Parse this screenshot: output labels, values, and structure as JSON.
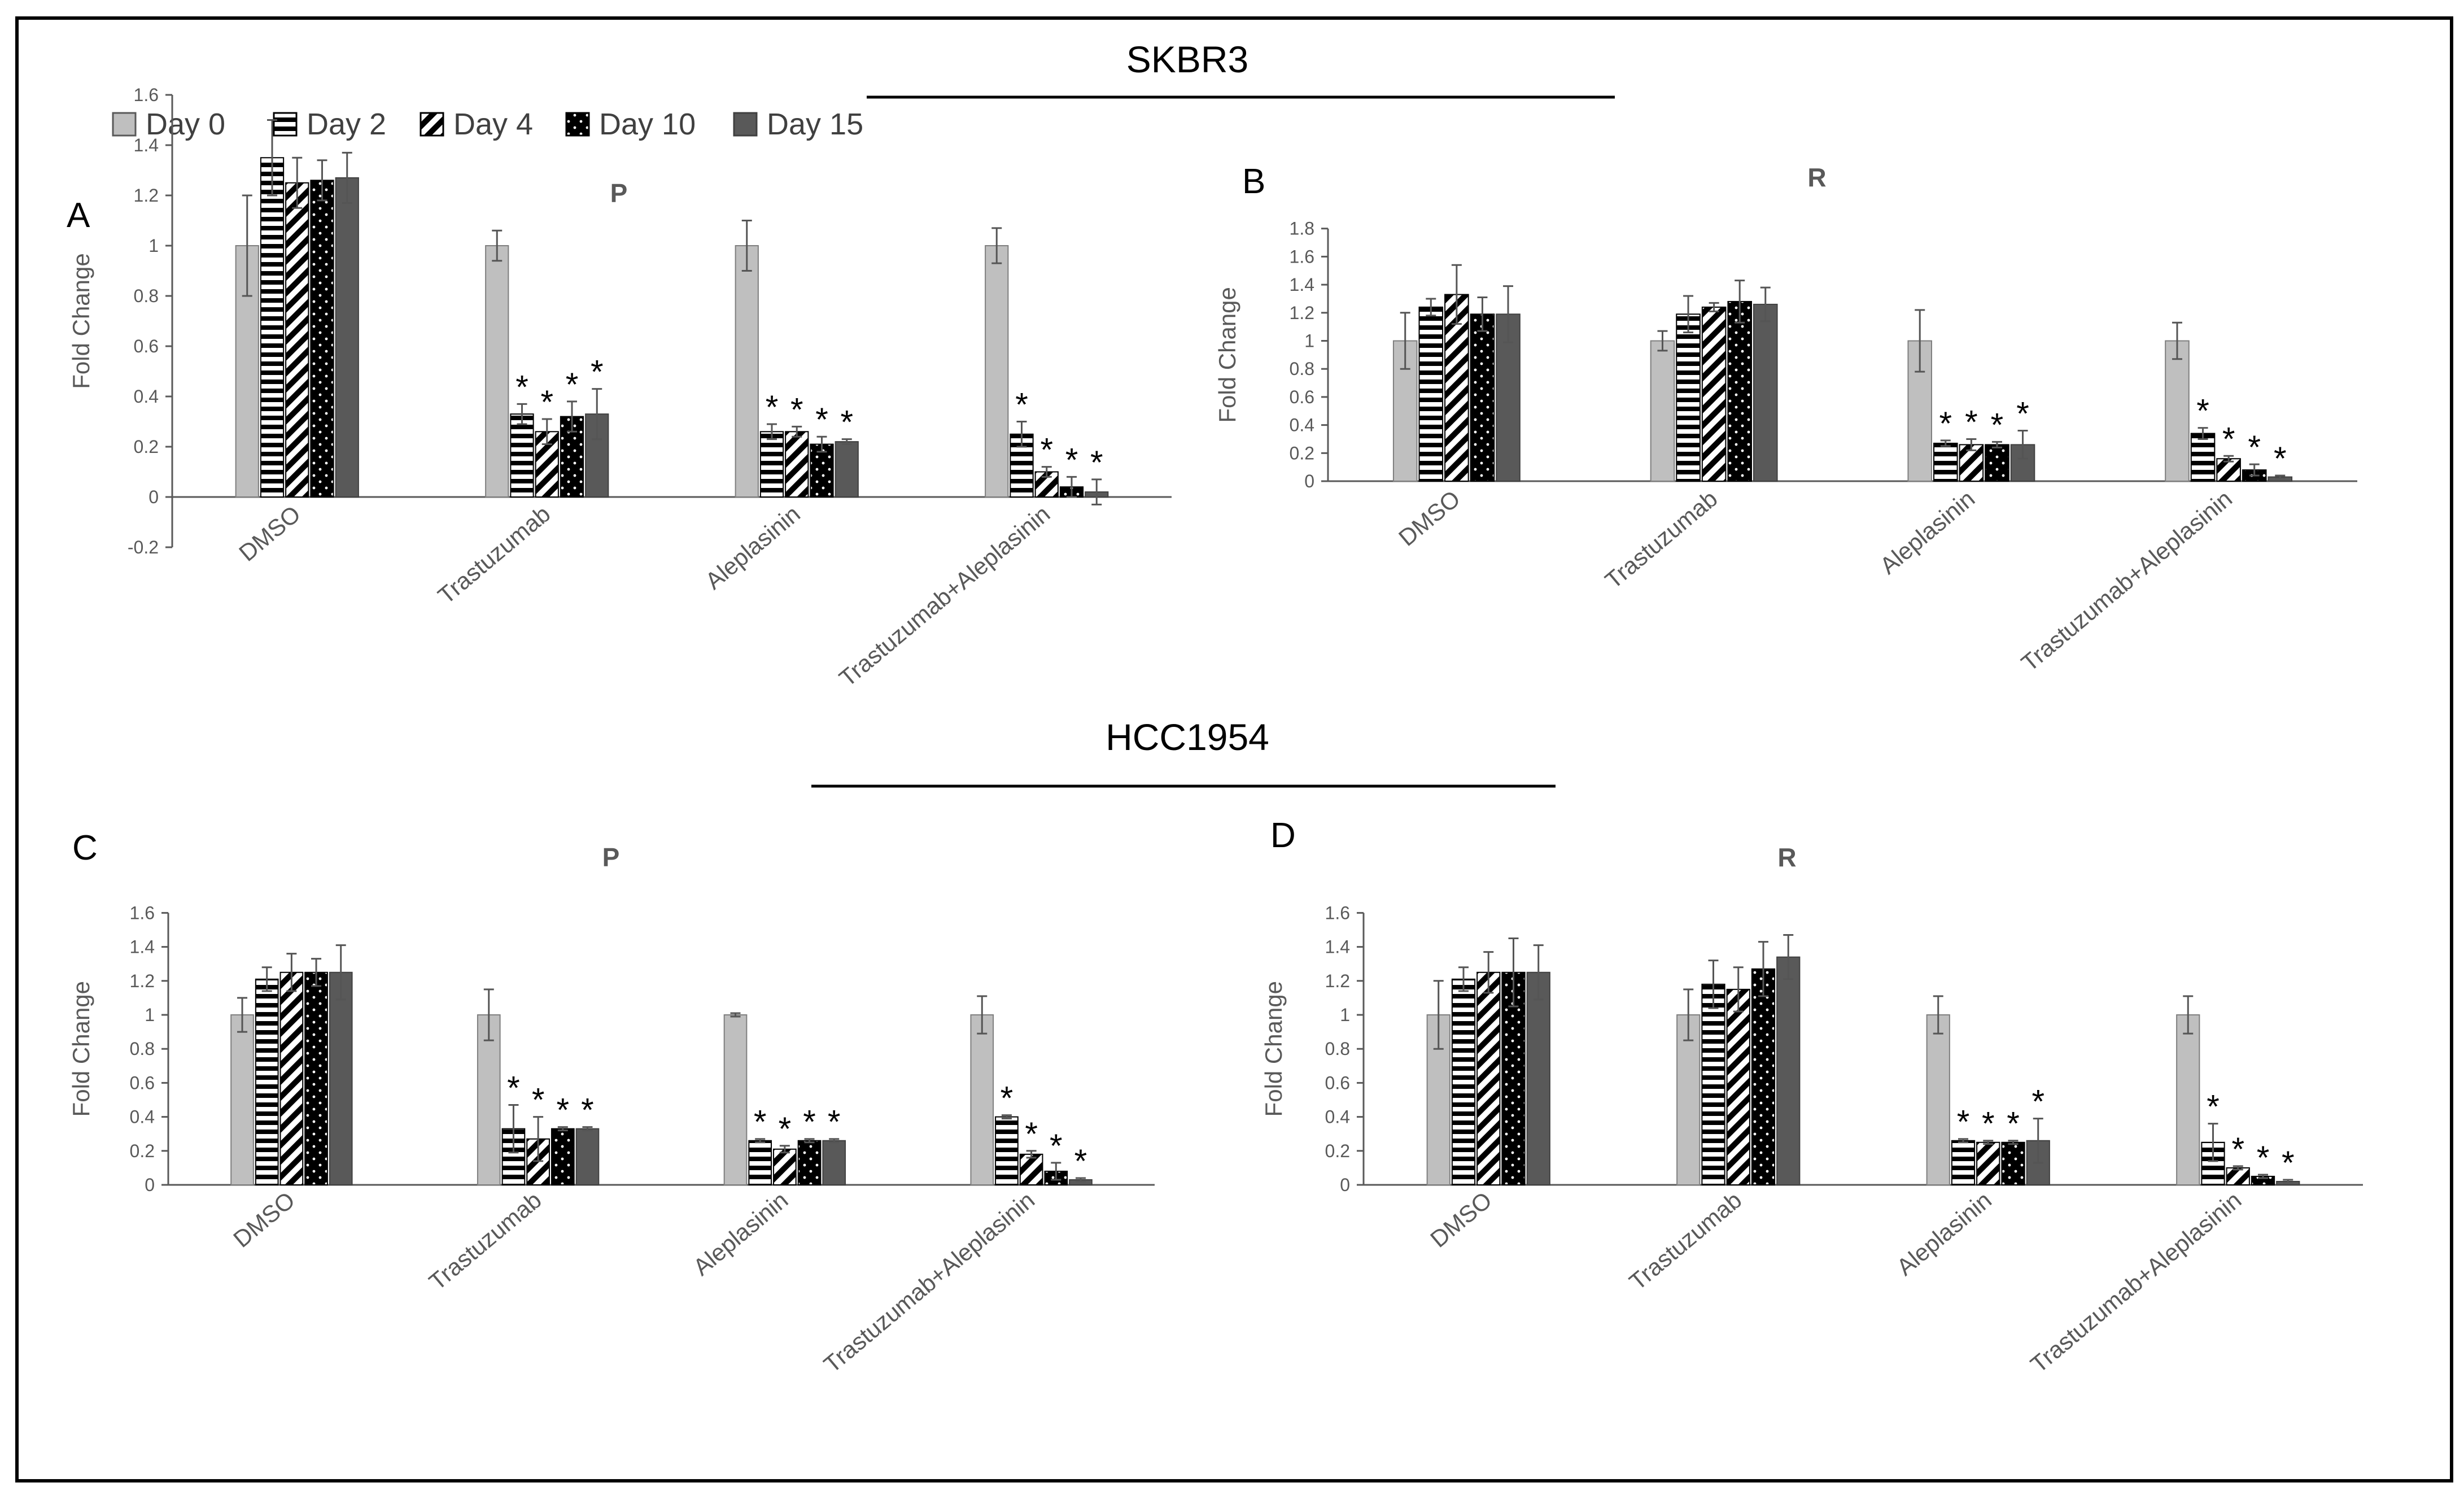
{
  "figure": {
    "section_titles": [
      "SKBR3",
      "HCC1954"
    ],
    "legend": [
      "Day 0",
      "Day 2",
      "Day 4",
      "Day 10",
      "Day 15"
    ],
    "significance_marker": "*"
  },
  "series_styles": {
    "Day 0": {
      "pattern": "solid",
      "color": "#bfbfbf"
    },
    "Day 2": {
      "pattern": "horizontal-stripes",
      "color": "#000000"
    },
    "Day 4": {
      "pattern": "diagonal-stripes",
      "color": "#000000"
    },
    "Day 10": {
      "pattern": "dots-on-black",
      "color": "#000000"
    },
    "Day 15": {
      "pattern": "solid",
      "color": "#595959"
    }
  },
  "chart_data": [
    {
      "type": "bar",
      "panel": "A",
      "title": "P",
      "ylabel": "Fold Change",
      "xlabel": "",
      "ylim": [
        -0.2,
        1.6
      ],
      "yticks": [
        "-0.2",
        "0",
        "0.2",
        "0.4",
        "0.6",
        "0.8",
        "1",
        "1.2",
        "1.4",
        "1.6"
      ],
      "categories": [
        "DMSO",
        "Trastuzumab",
        "Aleplasinin",
        "Trastuzumab+Aleplasinin"
      ],
      "series": [
        {
          "name": "Day 0",
          "values": [
            1.0,
            1.0,
            1.0,
            1.0
          ],
          "errors": [
            0.2,
            0.06,
            0.1,
            0.07
          ],
          "significant": [
            false,
            false,
            false,
            false
          ]
        },
        {
          "name": "Day 2",
          "values": [
            1.35,
            0.33,
            0.26,
            0.25
          ],
          "errors": [
            0.15,
            0.04,
            0.03,
            0.05
          ],
          "significant": [
            false,
            true,
            true,
            true
          ]
        },
        {
          "name": "Day 4",
          "values": [
            1.25,
            0.26,
            0.26,
            0.1
          ],
          "errors": [
            0.1,
            0.05,
            0.02,
            0.02
          ],
          "significant": [
            false,
            true,
            true,
            true
          ]
        },
        {
          "name": "Day 10",
          "values": [
            1.26,
            0.32,
            0.21,
            0.04
          ],
          "errors": [
            0.08,
            0.06,
            0.03,
            0.04
          ],
          "significant": [
            false,
            true,
            true,
            true
          ]
        },
        {
          "name": "Day 15",
          "values": [
            1.27,
            0.33,
            0.22,
            0.02
          ],
          "errors": [
            0.1,
            0.1,
            0.01,
            0.05
          ],
          "significant": [
            false,
            true,
            true,
            true
          ]
        }
      ]
    },
    {
      "type": "bar",
      "panel": "B",
      "title": "R",
      "ylabel": "Fold Change",
      "xlabel": "",
      "ylim": [
        0,
        1.8
      ],
      "yticks": [
        "0",
        "0.2",
        "0.4",
        "0.6",
        "0.8",
        "1",
        "1.2",
        "1.4",
        "1.6",
        "1.8"
      ],
      "categories": [
        "DMSO",
        "Trastuzumab",
        "Aleplasinin",
        "Trastuzumab+Aleplasinin"
      ],
      "series": [
        {
          "name": "Day 0",
          "values": [
            1.0,
            1.0,
            1.0,
            1.0
          ],
          "errors": [
            0.2,
            0.07,
            0.22,
            0.13
          ],
          "significant": [
            false,
            false,
            false,
            false
          ]
        },
        {
          "name": "Day 2",
          "values": [
            1.24,
            1.19,
            0.27,
            0.34
          ],
          "errors": [
            0.06,
            0.13,
            0.02,
            0.04
          ],
          "significant": [
            false,
            false,
            true,
            true
          ]
        },
        {
          "name": "Day 4",
          "values": [
            1.33,
            1.24,
            0.26,
            0.16
          ],
          "errors": [
            0.21,
            0.03,
            0.04,
            0.02
          ],
          "significant": [
            false,
            false,
            true,
            true
          ]
        },
        {
          "name": "Day 10",
          "values": [
            1.19,
            1.28,
            0.26,
            0.08
          ],
          "errors": [
            0.12,
            0.15,
            0.02,
            0.04
          ],
          "significant": [
            false,
            false,
            true,
            true
          ]
        },
        {
          "name": "Day 15",
          "values": [
            1.19,
            1.26,
            0.26,
            0.03
          ],
          "errors": [
            0.2,
            0.12,
            0.1,
            0.01
          ],
          "significant": [
            false,
            false,
            true,
            true
          ]
        }
      ]
    },
    {
      "type": "bar",
      "panel": "C",
      "title": "P",
      "ylabel": "Fold Change",
      "xlabel": "",
      "ylim": [
        0,
        1.6
      ],
      "yticks": [
        "0",
        "0.2",
        "0.4",
        "0.6",
        "0.8",
        "1",
        "1.2",
        "1.4",
        "1.6"
      ],
      "categories": [
        "DMSO",
        "Trastuzumab",
        "Aleplasinin",
        "Trastuzumab+Aleplasinin"
      ],
      "series": [
        {
          "name": "Day 0",
          "values": [
            1.0,
            1.0,
            1.0,
            1.0
          ],
          "errors": [
            0.1,
            0.15,
            0.01,
            0.11
          ],
          "significant": [
            false,
            false,
            false,
            false
          ]
        },
        {
          "name": "Day 2",
          "values": [
            1.21,
            0.33,
            0.26,
            0.4
          ],
          "errors": [
            0.07,
            0.14,
            0.01,
            0.01
          ],
          "significant": [
            false,
            true,
            true,
            true
          ]
        },
        {
          "name": "Day 4",
          "values": [
            1.25,
            0.27,
            0.21,
            0.18
          ],
          "errors": [
            0.11,
            0.13,
            0.02,
            0.02
          ],
          "significant": [
            false,
            true,
            true,
            true
          ]
        },
        {
          "name": "Day 10",
          "values": [
            1.25,
            0.33,
            0.26,
            0.08
          ],
          "errors": [
            0.08,
            0.01,
            0.01,
            0.05
          ],
          "significant": [
            false,
            true,
            true,
            true
          ]
        },
        {
          "name": "Day 15",
          "values": [
            1.25,
            0.33,
            0.26,
            0.03
          ],
          "errors": [
            0.16,
            0.01,
            0.01,
            0.01
          ],
          "significant": [
            false,
            true,
            true,
            true
          ]
        }
      ]
    },
    {
      "type": "bar",
      "panel": "D",
      "title": "R",
      "ylabel": "Fold Change",
      "xlabel": "",
      "ylim": [
        0,
        1.6
      ],
      "yticks": [
        "0",
        "0.2",
        "0.4",
        "0.6",
        "0.8",
        "1",
        "1.2",
        "1.4",
        "1.6"
      ],
      "categories": [
        "DMSO",
        "Trastuzumab",
        "Aleplasinin",
        "Trastuzumab+Aleplasinin"
      ],
      "series": [
        {
          "name": "Day 0",
          "values": [
            1.0,
            1.0,
            1.0,
            1.0
          ],
          "errors": [
            0.2,
            0.15,
            0.11,
            0.11
          ],
          "significant": [
            false,
            false,
            false,
            false
          ]
        },
        {
          "name": "Day 2",
          "values": [
            1.21,
            1.18,
            0.26,
            0.25
          ],
          "errors": [
            0.07,
            0.14,
            0.01,
            0.11
          ],
          "significant": [
            false,
            false,
            true,
            true
          ]
        },
        {
          "name": "Day 4",
          "values": [
            1.25,
            1.15,
            0.25,
            0.1
          ],
          "errors": [
            0.12,
            0.13,
            0.01,
            0.01
          ],
          "significant": [
            false,
            false,
            true,
            true
          ]
        },
        {
          "name": "Day 10",
          "values": [
            1.25,
            1.27,
            0.25,
            0.05
          ],
          "errors": [
            0.2,
            0.16,
            0.01,
            0.01
          ],
          "significant": [
            false,
            false,
            true,
            true
          ]
        },
        {
          "name": "Day 15",
          "values": [
            1.25,
            1.34,
            0.26,
            0.02
          ],
          "errors": [
            0.16,
            0.13,
            0.13,
            0.01
          ],
          "significant": [
            false,
            false,
            true,
            true
          ]
        }
      ]
    }
  ]
}
